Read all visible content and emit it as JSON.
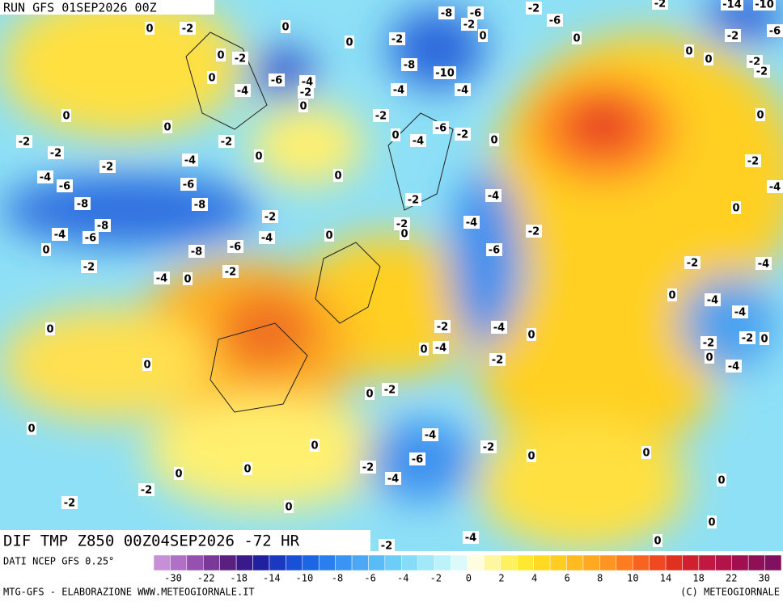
{
  "header": {
    "run": "RUN GFS 01SEP2026 00Z"
  },
  "footer": {
    "title": "DIF TMP Z850 00Z04SEP2026 -72 HR",
    "data_source": "DATI NCEP GFS 0.25°",
    "credit_left": "MTG-GFS - ELABORAZIONE WWW.METEOGIORNALE.IT",
    "credit_right": "(C) METEOGIORNALE"
  },
  "map": {
    "labels": [
      0,
      -2,
      0,
      -2,
      0,
      0,
      -4,
      -6,
      -4,
      -2,
      0,
      0,
      -2,
      -8,
      -6,
      -2,
      0,
      -2,
      -6,
      0,
      -2,
      0,
      0,
      -2,
      -2,
      -8,
      -10,
      -4,
      -4,
      -2,
      0,
      -6,
      -2,
      -4,
      0,
      0,
      0,
      -2,
      -2,
      -2,
      0,
      -4,
      -2,
      -4,
      -6,
      -6,
      0,
      -8,
      -8,
      -8,
      -2,
      -2,
      -4,
      -4,
      -2,
      0,
      -2,
      -4,
      -6,
      -4,
      0,
      -6,
      -8,
      0,
      -6,
      -2,
      -2,
      -4,
      0,
      -2,
      -4,
      0,
      -4,
      -4,
      0,
      -2,
      -4,
      0,
      -4,
      0,
      -2,
      -2,
      -2,
      0,
      0,
      -4,
      0,
      0,
      -2,
      0,
      -4,
      0,
      -2,
      -6,
      0,
      -2,
      0,
      0,
      -4,
      0,
      -2,
      -2,
      0,
      0,
      0,
      -4,
      -2,
      0,
      -10,
      -14,
      -6,
      -4,
      -2,
      0,
      0,
      -2
    ]
  },
  "colorbar": {
    "colors": [
      "#c78fd8",
      "#b070c8",
      "#9650b0",
      "#7a3898",
      "#5a2080",
      "#3a1a8a",
      "#2020a0",
      "#1a38c0",
      "#1850d8",
      "#1c66e4",
      "#2a7ef0",
      "#3a94f4",
      "#4aa8f6",
      "#58bcf6",
      "#6ccdf6",
      "#84dcf8",
      "#a0e8fa",
      "#bef2fa",
      "#ddfafa",
      "#fffde0",
      "#fff7a0",
      "#fff060",
      "#ffe830",
      "#ffda20",
      "#ffcc20",
      "#ffba20",
      "#ffa820",
      "#ff9420",
      "#ff7c20",
      "#f86420",
      "#f04820",
      "#e03020",
      "#d02030",
      "#c01840",
      "#b01448",
      "#a01050",
      "#901058",
      "#801060"
    ],
    "ticks": [
      -30,
      -22,
      -18,
      -14,
      -10,
      -8,
      -6,
      -4,
      -2,
      0,
      2,
      4,
      6,
      8,
      10,
      14,
      18,
      22,
      30
    ]
  }
}
